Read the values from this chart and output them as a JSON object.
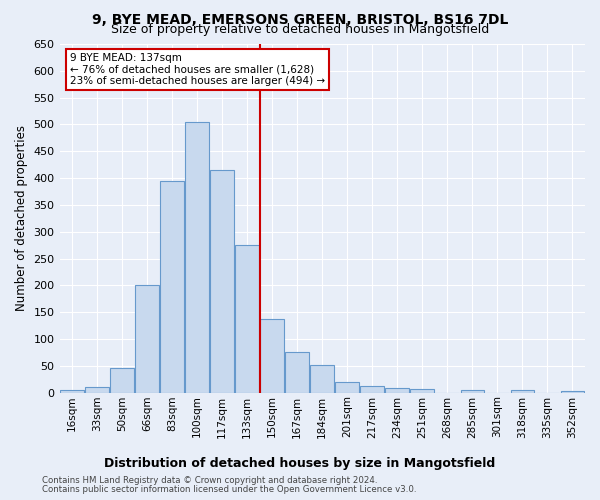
{
  "title1": "9, BYE MEAD, EMERSONS GREEN, BRISTOL, BS16 7DL",
  "title2": "Size of property relative to detached houses in Mangotsfield",
  "xlabel": "Distribution of detached houses by size in Mangotsfield",
  "ylabel": "Number of detached properties",
  "footer1": "Contains HM Land Registry data © Crown copyright and database right 2024.",
  "footer2": "Contains public sector information licensed under the Open Government Licence v3.0.",
  "annotation_title": "9 BYE MEAD: 137sqm",
  "annotation_line1": "← 76% of detached houses are smaller (1,628)",
  "annotation_line2": "23% of semi-detached houses are larger (494) →",
  "bin_labels": [
    "16sqm",
    "33sqm",
    "50sqm",
    "66sqm",
    "83sqm",
    "100sqm",
    "117sqm",
    "133sqm",
    "150sqm",
    "167sqm",
    "184sqm",
    "201sqm",
    "217sqm",
    "234sqm",
    "251sqm",
    "268sqm",
    "285sqm",
    "301sqm",
    "318sqm",
    "335sqm",
    "352sqm"
  ],
  "bar_values": [
    5,
    10,
    45,
    200,
    395,
    505,
    415,
    275,
    138,
    75,
    52,
    20,
    12,
    8,
    7,
    0,
    5,
    0,
    5,
    0,
    3
  ],
  "bar_color": "#c8d9ee",
  "bar_edge_color": "#6699cc",
  "vline_color": "#cc0000",
  "ylim": [
    0,
    650
  ],
  "yticks": [
    0,
    50,
    100,
    150,
    200,
    250,
    300,
    350,
    400,
    450,
    500,
    550,
    600,
    650
  ],
  "bg_color": "#e8eef8",
  "plot_bg_color": "#e8eef8",
  "grid_color": "#ffffff",
  "title1_fontsize": 10,
  "title2_fontsize": 9,
  "xlabel_fontsize": 9,
  "annotation_box_color": "#ffffff",
  "annotation_box_edge": "#cc0000"
}
